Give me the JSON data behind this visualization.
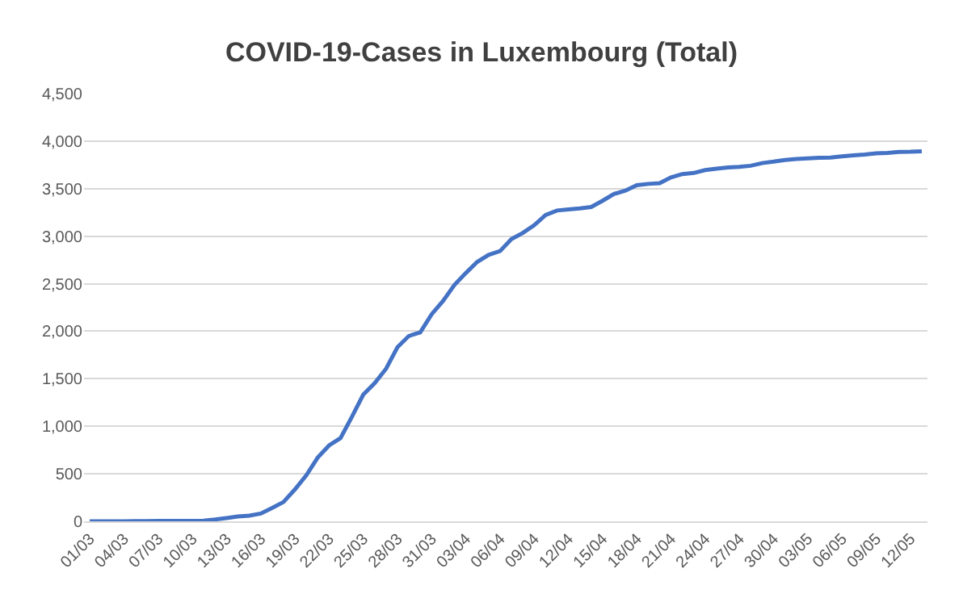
{
  "chart_data": {
    "type": "line",
    "title": "COVID-19-Cases in Luxembourg (Total)",
    "categories": [
      "01/03",
      null,
      null,
      "04/03",
      null,
      null,
      "07/03",
      null,
      null,
      "10/03",
      null,
      null,
      "13/03",
      null,
      null,
      "16/03",
      null,
      null,
      "19/03",
      null,
      null,
      "22/03",
      null,
      null,
      "25/03",
      null,
      null,
      "28/03",
      null,
      null,
      "31/03",
      null,
      null,
      "03/04",
      null,
      null,
      "06/04",
      null,
      null,
      "09/04",
      null,
      null,
      "12/04",
      null,
      null,
      "15/04",
      null,
      null,
      "18/04",
      null,
      null,
      "21/04",
      null,
      null,
      "24/04",
      null,
      null,
      "27/04",
      null,
      null,
      "30/04",
      null,
      null,
      "03/05",
      null,
      null,
      "06/05",
      null,
      null,
      "09/05",
      null,
      null,
      "12/05",
      null
    ],
    "series": [
      {
        "color": "#4472c4",
        "values": [
          1,
          1,
          1,
          1,
          2,
          3,
          4,
          5,
          5,
          5,
          7,
          19,
          34,
          51,
          59,
          81,
          140,
          203,
          335,
          484,
          670,
          798,
          875,
          1099,
          1333,
          1453,
          1605,
          1831,
          1950,
          1988,
          2178,
          2319,
          2487,
          2612,
          2729,
          2804,
          2843,
          2970,
          3034,
          3115,
          3223,
          3270,
          3281,
          3292,
          3307,
          3373,
          3444,
          3480,
          3537,
          3550,
          3558,
          3618,
          3654,
          3665,
          3695,
          3711,
          3723,
          3729,
          3741,
          3769,
          3784,
          3802,
          3812,
          3819,
          3824,
          3828,
          3840,
          3851,
          3859,
          3871,
          3877,
          3886,
          3888,
          3894
        ]
      }
    ],
    "ylim": [
      0,
      4500
    ],
    "yticks": [
      {
        "value": 0,
        "label": "0"
      },
      {
        "value": 500,
        "label": "500"
      },
      {
        "value": 1000,
        "label": "1,000"
      },
      {
        "value": 1500,
        "label": "1,500"
      },
      {
        "value": 2000,
        "label": "2,000"
      },
      {
        "value": 2500,
        "label": "2,500"
      },
      {
        "value": 3000,
        "label": "3,000"
      },
      {
        "value": 3500,
        "label": "3,500"
      },
      {
        "value": 4000,
        "label": "4,000"
      },
      {
        "value": 4500,
        "label": "4,500"
      }
    ],
    "grid": "y",
    "legend": false,
    "marker": "none",
    "line_style": "solid"
  }
}
